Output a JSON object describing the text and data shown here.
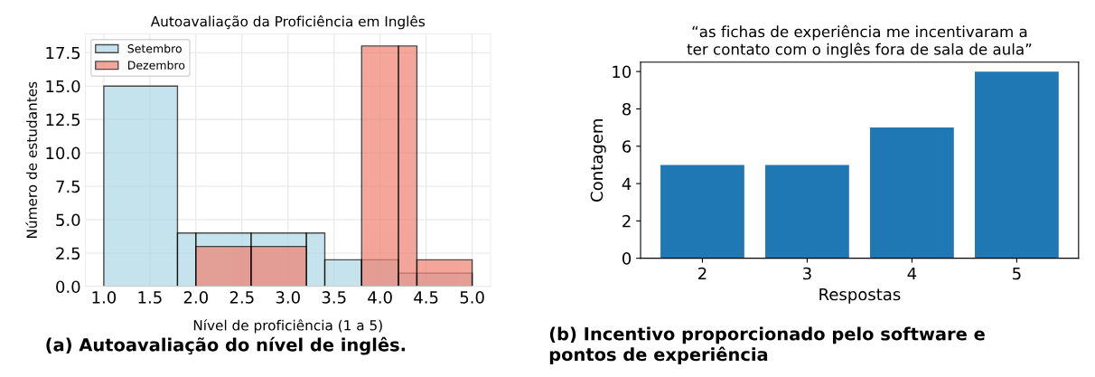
{
  "chart_data": [
    {
      "type": "histogram",
      "title": "Autoavaliação da Proficiência em Inglês",
      "xlabel": "Nível de proficiência (1 a 5)",
      "ylabel": "Número de estudantes",
      "series": [
        {
          "name": "Setembro",
          "color": "#add8e6",
          "values": [
            15,
            4,
            4,
            4,
            4,
            2,
            2,
            1,
            1
          ]
        },
        {
          "name": "Dezembro",
          "color": "#f08070",
          "values": [
            null,
            null,
            3,
            3,
            null,
            null,
            18,
            18,
            2
          ]
        }
      ],
      "bins": [
        1.0,
        1.8,
        2.0,
        2.6,
        3.2,
        3.4,
        3.8,
        4.2,
        4.4,
        5.0
      ],
      "xlim": [
        0.8,
        5.2
      ],
      "ylim": [
        0,
        18.9
      ],
      "xticks": [
        {
          "value": 1.0,
          "label": "1.0"
        },
        1.5,
        {
          "value": 2.0,
          "label": "2.0"
        },
        2.5,
        {
          "value": 3.0,
          "label": "3.0"
        },
        3.5,
        {
          "value": 4.0,
          "label": "4.0"
        },
        4.5,
        {
          "value": 5.0,
          "label": "5.0"
        }
      ],
      "yticks": [
        {
          "value": 0,
          "label": "0.0"
        },
        2.5,
        {
          "value": 5,
          "label": "5.0"
        },
        7.5,
        {
          "value": 10,
          "label": "10.0"
        },
        12.5,
        {
          "value": 15,
          "label": "15.0"
        },
        17.5
      ],
      "grid": true,
      "legend": "top left",
      "annotations": [
        "(a) Autoavaliação do nível de inglês."
      ]
    },
    {
      "type": "bar",
      "title": "“as fichas de experiência me incentivaram a\nter contato com o inglês fora de sala de aula”",
      "xlabel": "Respostas",
      "ylabel": "Contagem",
      "categories": [
        "2",
        "3",
        "4",
        "5"
      ],
      "values": [
        5,
        5,
        7,
        10
      ],
      "color": "#1f77b4",
      "ylim": [
        0,
        10.5
      ],
      "yticks": [
        0,
        2,
        4,
        6,
        8,
        10
      ],
      "grid": false,
      "legend": false,
      "annotations": [
        "(b) Incentivo proporcionado pelo software e\npontos de experiência"
      ]
    }
  ]
}
